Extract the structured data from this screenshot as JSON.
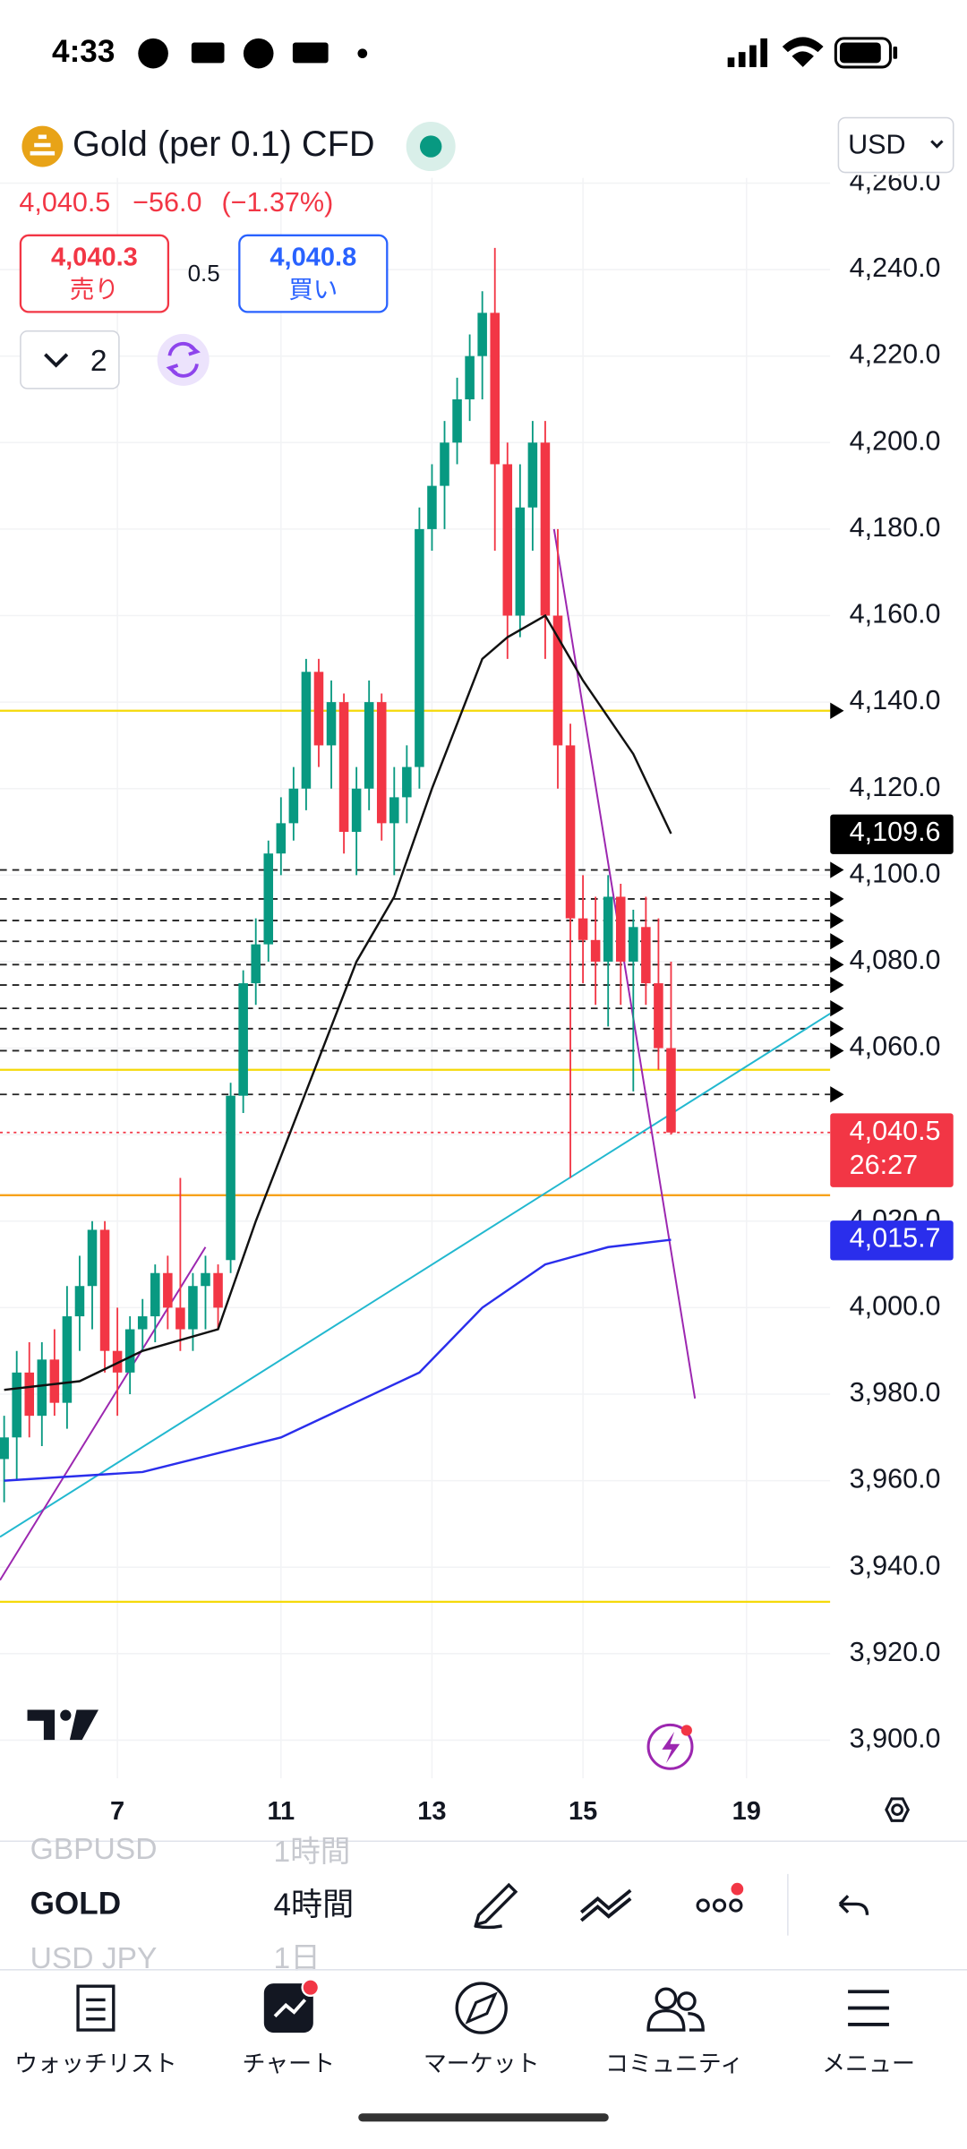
{
  "status_bar": {
    "time": "4:33"
  },
  "header": {
    "symbol": "Gold (per 0.1) CFD",
    "currency": "USD",
    "last": "4,040.5",
    "change": "−56.0",
    "change_pct": "(−1.37%)",
    "sell_price": "4,040.3",
    "sell_label": "売り",
    "spread": "0.5",
    "buy_price": "4,040.8",
    "buy_label": "買い",
    "layout_count": "2"
  },
  "chart_data": {
    "type": "candlestick",
    "x": [
      0,
      1,
      2,
      3,
      4,
      5,
      6,
      7,
      8,
      9,
      10,
      11,
      12,
      13,
      14,
      15,
      16,
      17,
      18,
      19,
      20,
      21,
      22,
      23,
      24,
      25,
      26,
      27,
      28,
      29,
      30,
      31,
      32,
      33,
      34,
      35,
      36,
      37,
      38,
      39,
      40,
      41,
      42,
      43,
      44,
      45,
      46,
      47,
      48,
      49,
      50,
      51,
      52,
      53
    ],
    "open": [
      3965,
      3970,
      3985,
      3975,
      3988,
      3978,
      3998,
      4005,
      4018,
      3990,
      3985,
      3995,
      3998,
      4008,
      4000,
      3995,
      4005,
      4008,
      4011,
      4049,
      4075,
      4084,
      4105,
      4112,
      4120,
      4147,
      4130,
      4140,
      4110,
      4120,
      4140,
      4112,
      4118,
      4125,
      4180,
      4190,
      4200,
      4210,
      4220,
      4230,
      4195,
      4160,
      4185,
      4200,
      4160,
      4130,
      4090,
      4085,
      4080,
      4095,
      4080,
      4088,
      4075,
      4060
    ],
    "high": [
      3975,
      3990,
      3992,
      3992,
      3995,
      4005,
      4012,
      4020,
      4020,
      4000,
      3998,
      4002,
      4010,
      4012,
      4030,
      4008,
      4012,
      4010,
      4052,
      4078,
      4090,
      4108,
      4118,
      4125,
      4150,
      4150,
      4145,
      4142,
      4125,
      4145,
      4142,
      4125,
      4130,
      4185,
      4195,
      4205,
      4215,
      4225,
      4235,
      4245,
      4200,
      4195,
      4205,
      4205,
      4180,
      4135,
      4100,
      4095,
      4100,
      4098,
      4092,
      4095,
      4090,
      4080
    ],
    "low": [
      3955,
      3960,
      3970,
      3968,
      3975,
      3972,
      3990,
      3995,
      3985,
      3975,
      3980,
      3990,
      3992,
      3995,
      3990,
      3990,
      3995,
      3995,
      4008,
      4045,
      4070,
      4080,
      4100,
      4108,
      4115,
      4125,
      4120,
      4105,
      4100,
      4115,
      4108,
      4100,
      4112,
      4120,
      4175,
      4180,
      4195,
      4205,
      4210,
      4175,
      4150,
      4155,
      4175,
      4150,
      4120,
      4030,
      4075,
      4070,
      4065,
      4070,
      4050,
      4070,
      4055,
      4040
    ],
    "close": [
      3970,
      3985,
      3975,
      3988,
      3978,
      3998,
      4005,
      4018,
      3990,
      3985,
      3995,
      3998,
      4008,
      4000,
      3995,
      4005,
      4008,
      4000,
      4049,
      4075,
      4084,
      4105,
      4112,
      4120,
      4147,
      4130,
      4140,
      4110,
      4120,
      4140,
      4112,
      4118,
      4125,
      4180,
      4190,
      4200,
      4210,
      4220,
      4230,
      4195,
      4160,
      4185,
      4200,
      4160,
      4130,
      4090,
      4085,
      4080,
      4095,
      4080,
      4088,
      4075,
      4060,
      4040.5
    ],
    "up_color": "#089981",
    "down_color": "#f23645",
    "xlim": [
      -0.33,
      65.65
    ],
    "xticks": [
      {
        "value": 9,
        "label": "7"
      },
      {
        "value": 22,
        "label": "11"
      },
      {
        "value": 34,
        "label": "13"
      },
      {
        "value": 46,
        "label": "15"
      },
      {
        "value": 59,
        "label": "19"
      }
    ],
    "ylim": [
      3891.2,
      4261.2
    ],
    "yticks": [
      {
        "value": 4260,
        "label": "4,260.0"
      },
      {
        "value": 4240,
        "label": "4,240.0"
      },
      {
        "value": 4220,
        "label": "4,220.0"
      },
      {
        "value": 4200,
        "label": "4,200.0"
      },
      {
        "value": 4180,
        "label": "4,180.0"
      },
      {
        "value": 4160,
        "label": "4,160.0"
      },
      {
        "value": 4140,
        "label": "4,140.0"
      },
      {
        "value": 4120,
        "label": "4,120.0"
      },
      {
        "value": 4100,
        "label": "4,100.0"
      },
      {
        "value": 4080,
        "label": "4,080.0"
      },
      {
        "value": 4060,
        "label": "4,060.0"
      },
      {
        "value": 4040,
        "label": "4,040.0"
      },
      {
        "value": 4020,
        "label": "4,020.0"
      },
      {
        "value": 4000,
        "label": "4,000.0"
      },
      {
        "value": 3980,
        "label": "3,980.0"
      },
      {
        "value": 3960,
        "label": "3,960.0"
      },
      {
        "value": 3940,
        "label": "3,940.0"
      },
      {
        "value": 3920,
        "label": "3,920.0"
      },
      {
        "value": 3900,
        "label": "3,900.0"
      }
    ],
    "grid": true,
    "series": [
      {
        "color": "#111111",
        "x": [
          0,
          6,
          11,
          17,
          20,
          24,
          28,
          31,
          34,
          38,
          40,
          43,
          46,
          50,
          53
        ],
        "values": [
          3981,
          3983,
          3990,
          3995,
          4020,
          4050,
          4080,
          4095,
          4120,
          4150,
          4155,
          4160,
          4145,
          4128,
          4109.6
        ]
      },
      {
        "color": "#2a2eec",
        "x": [
          0,
          11,
          22,
          33,
          38,
          43,
          48,
          53
        ],
        "values": [
          3960,
          3962,
          3970,
          3985,
          4000,
          4010,
          4014,
          4015.7
        ]
      }
    ],
    "trendlines": [
      {
        "color": "#22b8cf",
        "x": [
          -0.33,
          65.65
        ],
        "y": [
          3947,
          4068
        ]
      },
      {
        "color": "#9c27b0",
        "x": [
          -0.33,
          16
        ],
        "y": [
          3937,
          4014
        ]
      },
      {
        "color": "#9c27b0",
        "x": [
          43.7,
          54.9
        ],
        "y": [
          4180,
          3979
        ]
      }
    ],
    "hlines": [
      {
        "value": 4138,
        "color": "#f5d90a",
        "style": "solid"
      },
      {
        "value": 4101.2,
        "color": "#222222",
        "style": "dashed"
      },
      {
        "value": 4094.5,
        "color": "#222222",
        "style": "dashed"
      },
      {
        "value": 4089.5,
        "color": "#222222",
        "style": "dashed"
      },
      {
        "value": 4084.7,
        "color": "#222222",
        "style": "dashed"
      },
      {
        "value": 4079.3,
        "color": "#222222",
        "style": "dashed"
      },
      {
        "value": 4074.6,
        "color": "#222222",
        "style": "dashed"
      },
      {
        "value": 4069.2,
        "color": "#222222",
        "style": "dashed"
      },
      {
        "value": 4064.5,
        "color": "#222222",
        "style": "dashed"
      },
      {
        "value": 4059.4,
        "color": "#222222",
        "style": "dashed"
      },
      {
        "value": 4055,
        "color": "#f5d90a",
        "style": "solid"
      },
      {
        "value": 4049.3,
        "color": "#222222",
        "style": "dashed"
      },
      {
        "value": 4040.5,
        "color": "#f23645",
        "style": "dotted"
      },
      {
        "value": 4026,
        "color": "#f7a21b",
        "style": "solid"
      },
      {
        "value": 3932,
        "color": "#f5d90a",
        "style": "solid"
      }
    ],
    "price_labels": [
      {
        "value": 4109.6,
        "label": "4,109.6",
        "color": "#000000"
      },
      {
        "value": 4040.5,
        "label": "4,040.5",
        "countdown": "26:27",
        "color": "#f23645"
      },
      {
        "value": 4015.7,
        "label": "4,015.7",
        "color": "#2a2eec"
      }
    ]
  },
  "toolbar": {
    "symbols": [
      "GBPUSD",
      "GOLD",
      "USD JPY"
    ],
    "intervals": [
      "1時間",
      "4時間",
      "1日"
    ]
  },
  "tabs": [
    "ウォッチリスト",
    "チャート",
    "マーケット",
    "コミュニティ",
    "メニュー"
  ]
}
